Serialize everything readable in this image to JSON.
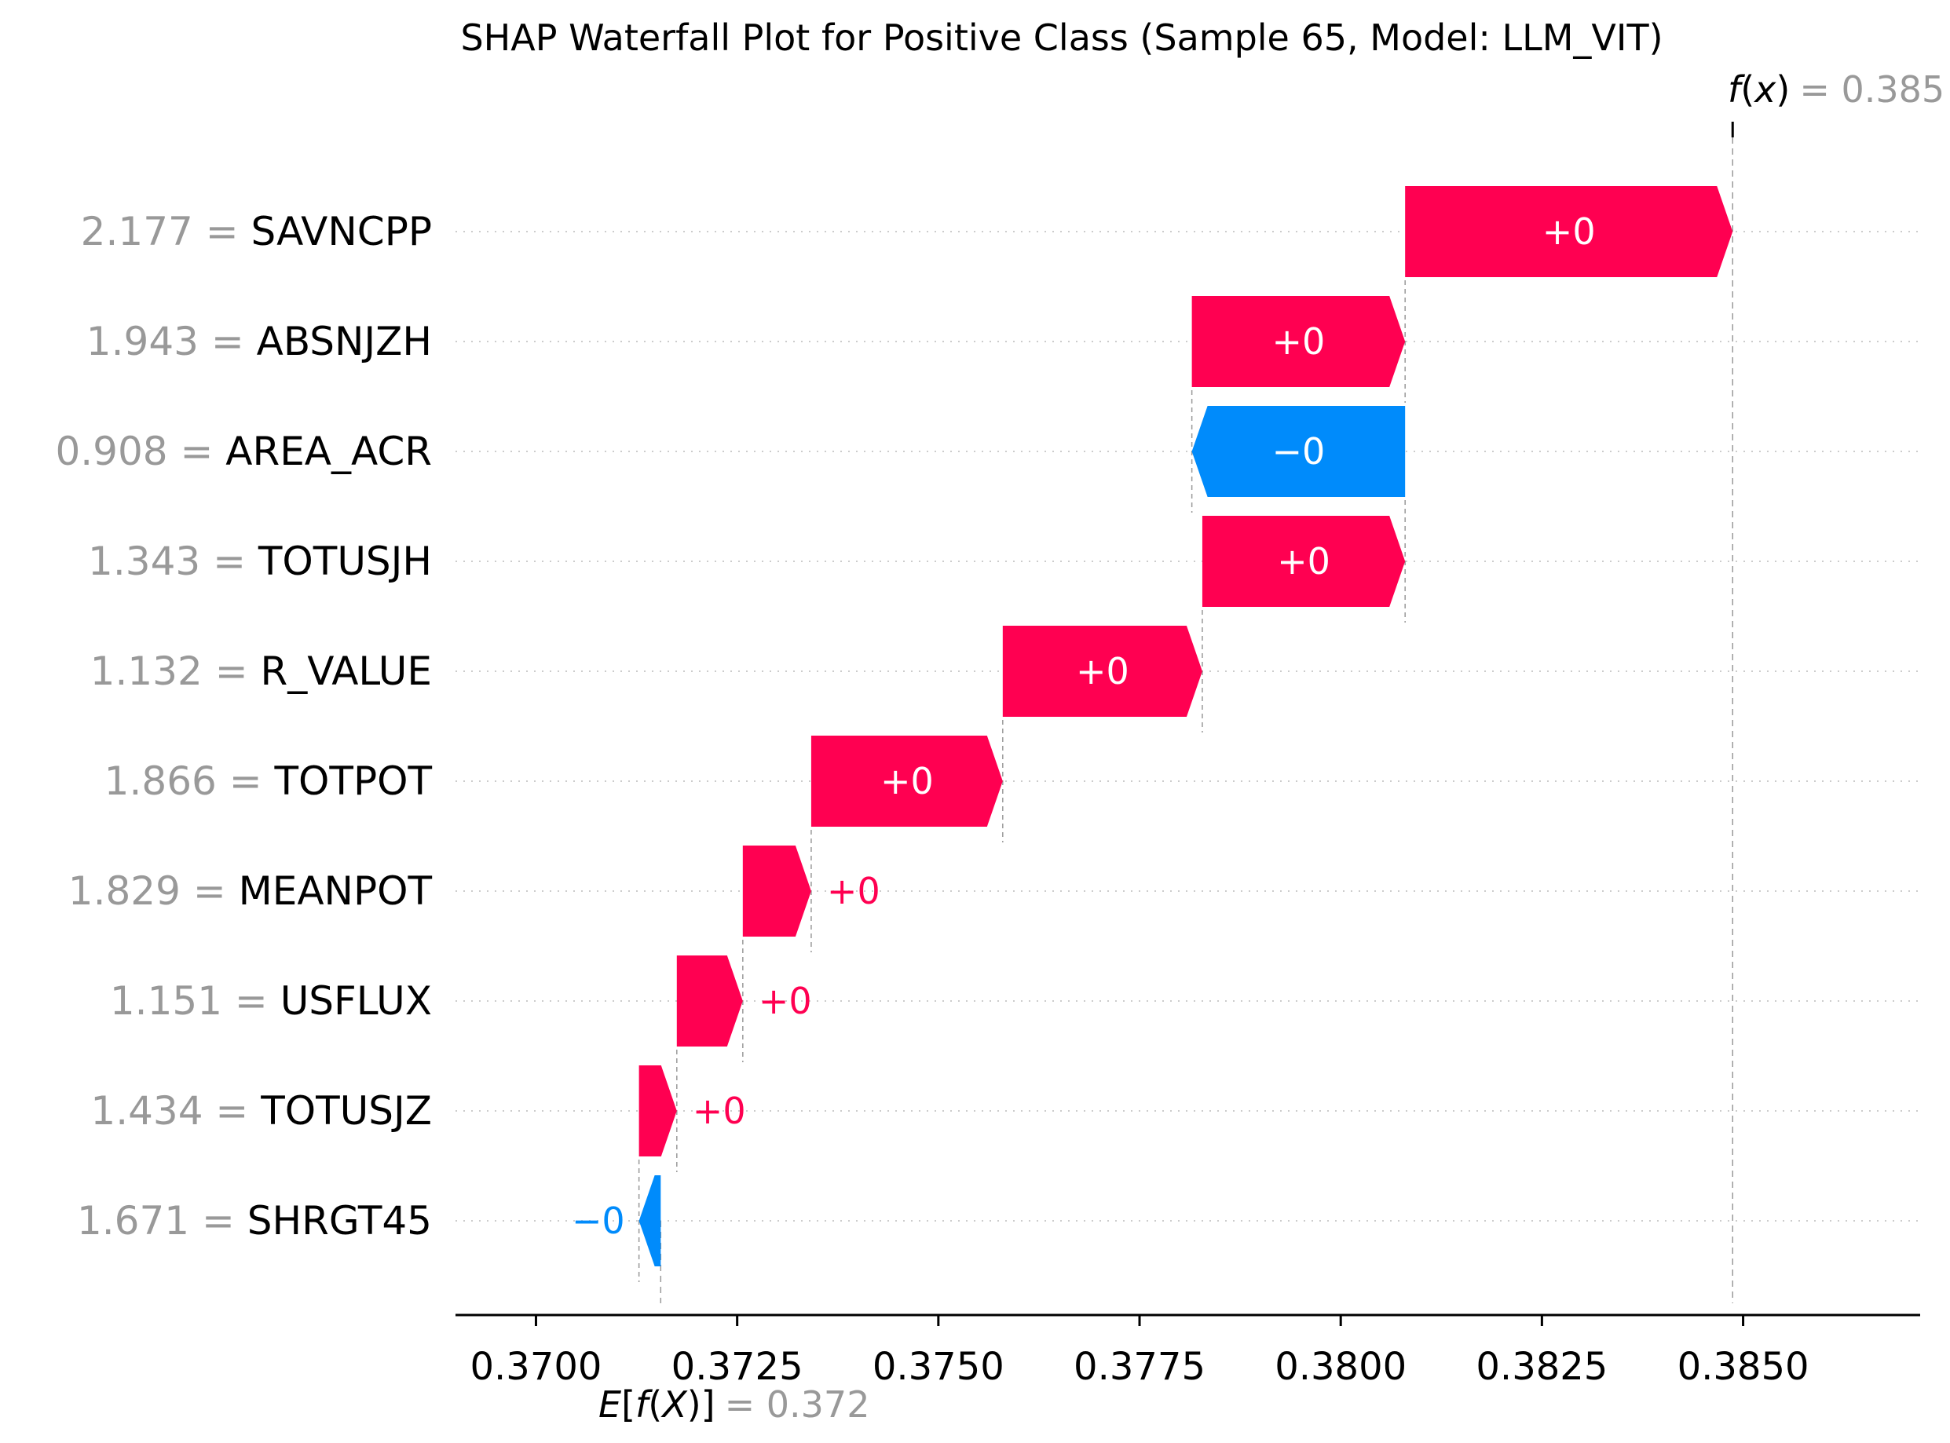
{
  "chart_data": {
    "type": "waterfall",
    "title": "SHAP Waterfall Plot for Positive Class (Sample 65, Model: LLM_VIT)",
    "fx": {
      "label_f": "f",
      "label_x": "x",
      "value_text": "= 0.385",
      "value": 0.38487
    },
    "efx": {
      "label_e": "E",
      "label_f": "f",
      "label_x": "X",
      "value_text": "= 0.372",
      "value": 0.37155
    },
    "xlim": [
      0.369,
      0.3872
    ],
    "ticks": [
      {
        "value": 0.37,
        "label": "0.3700"
      },
      {
        "value": 0.3725,
        "label": "0.3725"
      },
      {
        "value": 0.375,
        "label": "0.3750"
      },
      {
        "value": 0.3775,
        "label": "0.3775"
      },
      {
        "value": 0.38,
        "label": "0.3800"
      },
      {
        "value": 0.3825,
        "label": "0.3825"
      },
      {
        "value": 0.385,
        "label": "0.3850"
      }
    ],
    "features": [
      {
        "value_text": "2.177 =",
        "name": "SAVNCPP",
        "start": 0.3808,
        "end": 0.38487,
        "label": "+0",
        "sign": "pos"
      },
      {
        "value_text": "1.943 =",
        "name": "ABSNJZH",
        "start": 0.37815,
        "end": 0.3808,
        "label": "+0",
        "sign": "pos"
      },
      {
        "value_text": "0.908 =",
        "name": "AREA_ACR",
        "start": 0.3808,
        "end": 0.37815,
        "label": "−0",
        "sign": "neg"
      },
      {
        "value_text": "1.343 =",
        "name": "TOTUSJH",
        "start": 0.37828,
        "end": 0.3808,
        "label": "+0",
        "sign": "pos"
      },
      {
        "value_text": "1.132 =",
        "name": "R_VALUE",
        "start": 0.3758,
        "end": 0.37828,
        "label": "+0",
        "sign": "pos"
      },
      {
        "value_text": "1.866 =",
        "name": "TOTPOT",
        "start": 0.37342,
        "end": 0.3758,
        "label": "+0",
        "sign": "pos"
      },
      {
        "value_text": "1.829 =",
        "name": "MEANPOT",
        "start": 0.37257,
        "end": 0.37342,
        "label": "+0",
        "sign": "pos"
      },
      {
        "value_text": "1.151 =",
        "name": "USFLUX",
        "start": 0.37175,
        "end": 0.37257,
        "label": "+0",
        "sign": "pos"
      },
      {
        "value_text": "1.434 =",
        "name": "TOTUSJZ",
        "start": 0.37128,
        "end": 0.37175,
        "label": "+0",
        "sign": "pos"
      },
      {
        "value_text": "1.671 =",
        "name": "SHRGT45",
        "start": 0.37155,
        "end": 0.37128,
        "label": "−0",
        "sign": "neg"
      }
    ],
    "colors": {
      "positive": "#ff0051",
      "negative": "#008bfb",
      "value_gray": "#999999",
      "text": "#000000",
      "grid": "#cccccc",
      "bar_label_inside": "#ffffff"
    }
  }
}
